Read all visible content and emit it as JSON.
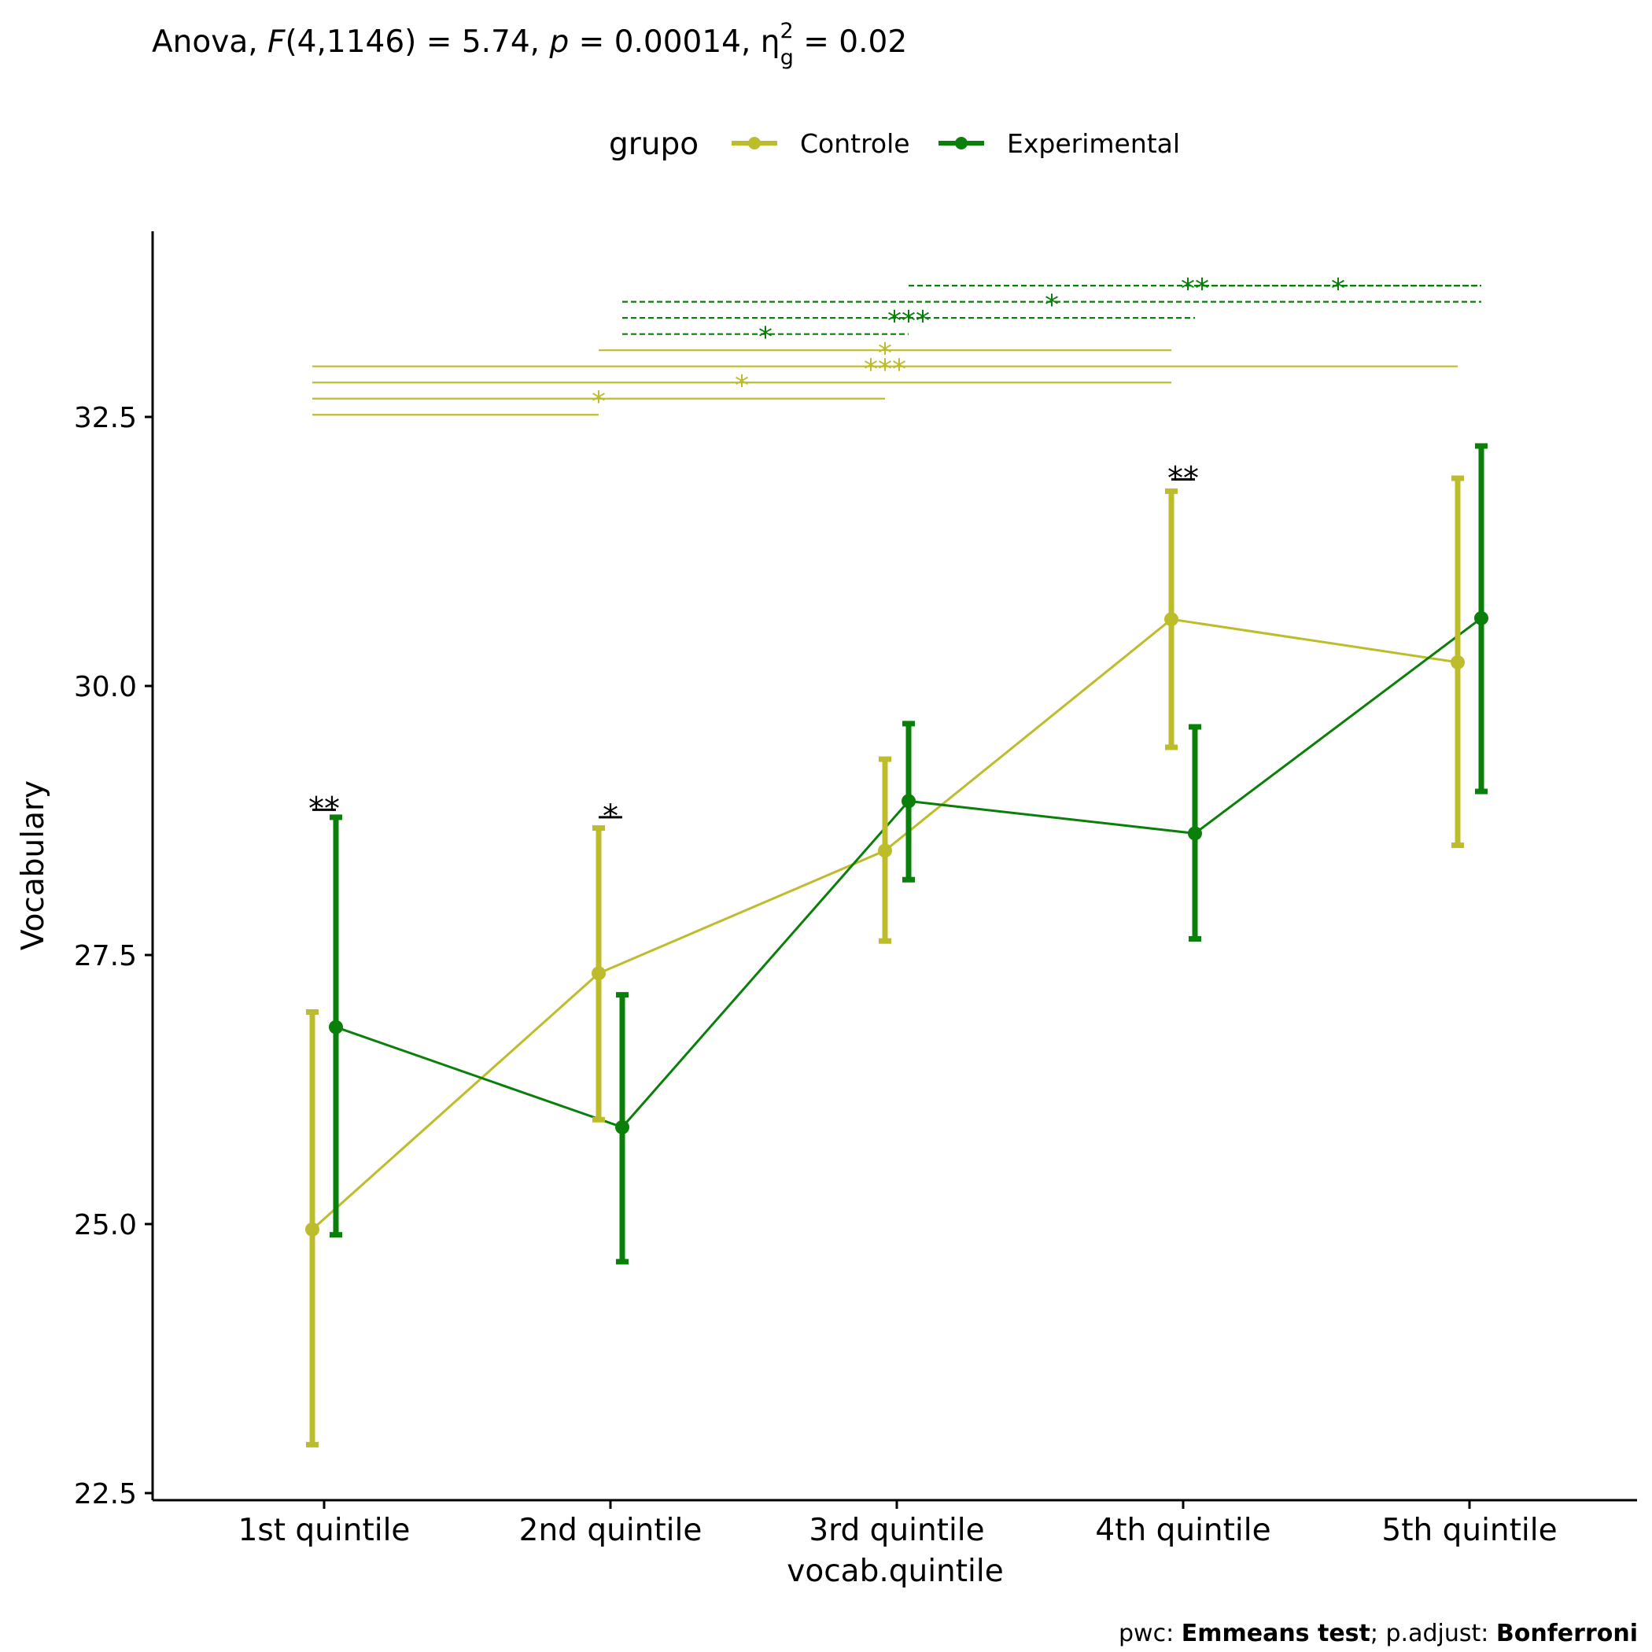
{
  "title": {
    "prefix": "Anova, ",
    "f_symbol": "F",
    "f_args": "(4,1146) = 5.74, ",
    "p_symbol": "p",
    "p_value": " = 0.00014, ",
    "eta": "η",
    "eta_sup": "2",
    "eta_sub": "g",
    "eta_value": " = 0.02"
  },
  "legend": {
    "title": "grupo",
    "items": [
      "Controle",
      "Experimental"
    ]
  },
  "caption": {
    "pwc_label": "pwc: ",
    "pwc_value": "Emmeans test",
    "adjust_label": "; p.adjust: ",
    "adjust_value": "Bonferroni"
  },
  "colors": {
    "controle": "#bdbd2b",
    "experimental": "#0a7f0a",
    "axis": "#000000"
  },
  "chart_data": {
    "type": "line",
    "xlabel": "vocab.quintile",
    "ylabel": "Vocabulary",
    "categories": [
      "1st quintile",
      "2nd quintile",
      "3rd quintile",
      "4th quintile",
      "5th quintile"
    ],
    "ylim": [
      22.4,
      34.3
    ],
    "yticks": [
      22.5,
      25.0,
      27.5,
      30.0,
      32.5
    ],
    "ytick_labels": [
      "22.5",
      "25.0",
      "27.5",
      "30.0",
      "32.5"
    ],
    "grid": false,
    "legend_position": "top",
    "series": [
      {
        "name": "Controle",
        "values": [
          24.95,
          27.33,
          28.47,
          30.62,
          30.22
        ],
        "ci_low": [
          22.95,
          25.97,
          27.63,
          29.43,
          28.52
        ],
        "ci_high": [
          26.97,
          28.68,
          29.32,
          31.81,
          31.93
        ]
      },
      {
        "name": "Experimental",
        "values": [
          26.83,
          25.9,
          28.93,
          28.63,
          30.63
        ],
        "ci_low": [
          24.9,
          24.65,
          28.2,
          27.65,
          29.02
        ],
        "ci_high": [
          28.78,
          27.13,
          29.65,
          29.62,
          32.23
        ]
      }
    ],
    "group_comparisons": [
      {
        "quintile": "1st quintile",
        "label": "**",
        "y": 28.85
      },
      {
        "quintile": "2nd quintile",
        "label": "*",
        "y": 28.78
      },
      {
        "quintile": "4th quintile",
        "label": "**",
        "y": 31.92
      }
    ],
    "pairwise_brackets": [
      {
        "series": "Controle",
        "from": "1st quintile",
        "to": "2nd quintile",
        "label": "",
        "y": 32.52
      },
      {
        "series": "Controle",
        "from": "1st quintile",
        "to": "3rd quintile",
        "label": "*",
        "y": 32.67
      },
      {
        "series": "Controle",
        "from": "1st quintile",
        "to": "4th quintile",
        "label": "*",
        "y": 32.82
      },
      {
        "series": "Controle",
        "from": "1st quintile",
        "to": "5th quintile",
        "label": "***",
        "y": 32.97
      },
      {
        "series": "Controle",
        "from": "2nd quintile",
        "to": "4th quintile",
        "label": "*",
        "y": 33.12
      },
      {
        "series": "Experimental",
        "from": "2nd quintile",
        "to": "3rd quintile",
        "label": "*",
        "y": 33.27
      },
      {
        "series": "Experimental",
        "from": "2nd quintile",
        "to": "4th quintile",
        "label": "***",
        "y": 33.42
      },
      {
        "series": "Experimental",
        "from": "2nd quintile",
        "to": "5th quintile",
        "label": "*",
        "y": 33.57
      },
      {
        "series": "Experimental",
        "from": "3rd quintile",
        "to": "5th quintile",
        "label": "**",
        "y": 33.72
      },
      {
        "series": "Experimental",
        "from": "4th quintile",
        "to": "5th quintile",
        "label": "*",
        "y": 33.72
      }
    ]
  }
}
